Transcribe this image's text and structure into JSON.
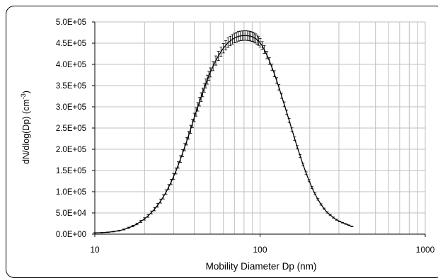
{
  "chart_data": {
    "type": "line",
    "xlabel": "Mobility Diameter Dp (nm)",
    "ylabel": "dN/dlog(Dp) (cm",
    "ylabel_superscript": "-3",
    "ylabel_suffix": ")",
    "x_scale": "log",
    "xlim": [
      10,
      1000
    ],
    "ylim": [
      0,
      500000
    ],
    "x_ticks": [
      10,
      100,
      1000
    ],
    "x_tick_labels": [
      "10",
      "100",
      "1000"
    ],
    "y_ticks": [
      0,
      50000,
      100000,
      150000,
      200000,
      250000,
      300000,
      350000,
      400000,
      450000,
      500000
    ],
    "y_tick_labels": [
      "0.0E+00",
      "5.0E+04",
      "1.0E+05",
      "1.5E+05",
      "2.0E+05",
      "2.5E+05",
      "3.0E+05",
      "3.5E+05",
      "4.0E+05",
      "4.5E+05",
      "5.0E+05"
    ],
    "grid": true,
    "error_bars": true,
    "line_color": "#000000",
    "grid_color": "#bfbfbf",
    "series": [
      {
        "x": [
          10.0,
          11.0,
          12.0,
          13.0,
          14.0,
          15.0,
          16.0,
          17.0,
          18.0,
          19.0,
          20.0,
          21.0,
          22.0,
          23.0,
          24.0,
          25.0,
          26.0,
          27.0,
          28.0,
          29.0,
          30.0,
          31.0,
          32.0,
          33.0,
          34.0,
          35.0,
          36.0,
          37.0,
          38.0,
          39.0,
          40.0,
          41.0,
          42.0,
          43.0,
          44.0,
          45.0,
          46.0,
          47.0,
          48.0,
          49.0,
          50.0,
          52.0,
          54.0,
          56.0,
          58.0,
          60.0,
          62.0,
          64.0,
          66.0,
          68.0,
          70.0,
          72.0,
          74.0,
          76.0,
          78.0,
          80.0,
          82.0,
          84.0,
          86.0,
          88.0,
          90.0,
          92.0,
          94.0,
          96.0,
          98.0,
          100.0,
          103.0,
          106.0,
          110.0,
          114.0,
          118.0,
          122.0,
          126.0,
          130.0,
          135.0,
          140.0,
          145.0,
          150.0,
          156.0,
          162.0,
          168.0,
          175.0,
          182.0,
          190.0,
          198.0,
          206.0,
          215.0,
          224.0,
          234.0,
          244.0,
          255.0,
          266.0,
          278.0,
          290.0,
          303.0,
          316.0,
          330.0,
          345.0,
          360.0
        ],
        "y": [
          3000,
          3500,
          4500,
          6000,
          8000,
          11000,
          15000,
          19000,
          24000,
          30000,
          36000,
          43000,
          51000,
          59000,
          68000,
          78000,
          88000,
          99000,
          111000,
          123000,
          136000,
          149000,
          163000,
          177000,
          191000,
          205000,
          219000,
          233000,
          247000,
          261000,
          275000,
          288000,
          300000,
          312000,
          323000,
          334000,
          345000,
          355000,
          364000,
          373000,
          381000,
          396000,
          409000,
          420000,
          430000,
          438000,
          445000,
          451000,
          455000,
          459000,
          462000,
          464000,
          466000,
          467000,
          467500,
          468000,
          468000,
          467500,
          467000,
          466000,
          465000,
          463000,
          461000,
          458000,
          455000,
          451000,
          444000,
          435000,
          422000,
          408000,
          393000,
          378000,
          362000,
          346000,
          326000,
          306000,
          287000,
          268000,
          246000,
          225000,
          205000,
          184000,
          164000,
          144000,
          126000,
          110000,
          95000,
          82000,
          70000,
          60000,
          51000,
          45000,
          39000,
          34000,
          30000,
          27000,
          24000,
          21000,
          18000
        ],
        "errors": [
          500,
          600,
          700,
          800,
          1000,
          1200,
          1500,
          1800,
          2000,
          2400,
          2800,
          3200,
          3600,
          4000,
          4400,
          4800,
          5200,
          5600,
          6000,
          6400,
          6800,
          7200,
          7600,
          8000,
          8300,
          8600,
          8900,
          9200,
          9500,
          9700,
          9900,
          10000,
          10100,
          10200,
          10300,
          10400,
          10500,
          10500,
          10600,
          10600,
          10700,
          10800,
          10900,
          11000,
          11000,
          11100,
          11100,
          11200,
          11200,
          11200,
          11300,
          11300,
          11300,
          11300,
          11300,
          11300,
          11300,
          11300,
          11200,
          11200,
          11100,
          11000,
          10800,
          10600,
          10300,
          10000,
          9600,
          9200,
          8700,
          8200,
          7700,
          7200,
          6800,
          6400,
          6000,
          5600,
          5200,
          4800,
          4400,
          4000,
          3700,
          3400,
          3100,
          2800,
          2500,
          2300,
          2100,
          1900,
          1700,
          1500,
          1400,
          1300,
          1200,
          1100,
          1000,
          900,
          800,
          700,
          600
        ]
      }
    ]
  }
}
